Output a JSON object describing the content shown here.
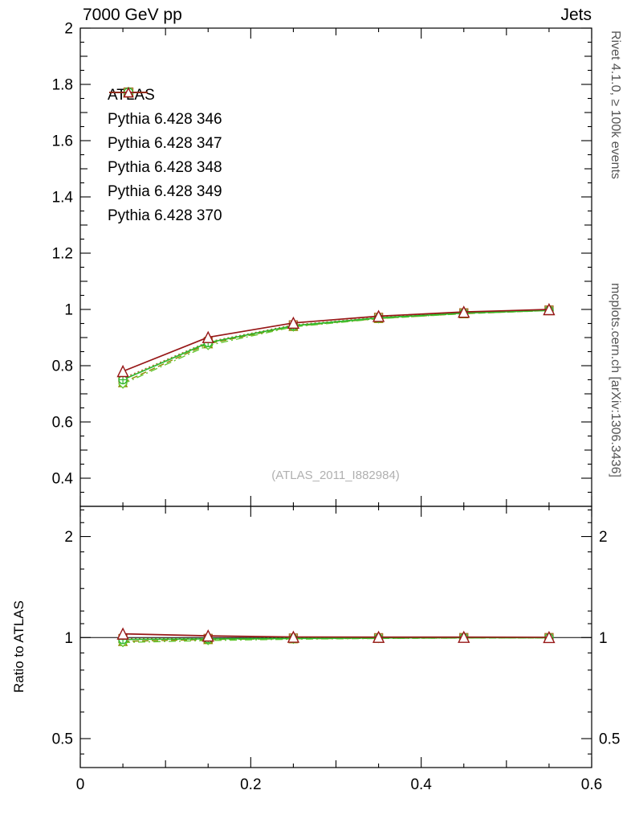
{
  "header": {
    "title_left": "7000 GeV pp",
    "title_right": "Jets"
  },
  "side_labels": {
    "right_top": "Rivet 4.1.0, ≥ 100k events",
    "right_bottom": "mcplots.cern.ch [arXiv:1306.3436]"
  },
  "watermark": "(ATLAS_2011_I882984)",
  "colors": {
    "frame": "#000000",
    "watermark": "#b0b0b0",
    "side_label": "#555555",
    "reference_line": "#000000"
  },
  "chart_data": [
    {
      "type": "line",
      "panel": "main",
      "x": [
        0.05,
        0.15,
        0.25,
        0.35,
        0.45,
        0.55
      ],
      "xlim": [
        0,
        0.6
      ],
      "ylim": [
        0.3,
        2.0
      ],
      "xticks": [
        0,
        0.2,
        0.4,
        0.6
      ],
      "yticks": [
        0.4,
        0.6,
        0.8,
        1,
        1.2,
        1.4,
        1.6,
        1.8,
        2
      ],
      "grid": false,
      "legend_position": "upper-left",
      "series": [
        {
          "name": "ATLAS",
          "color": "#000000",
          "marker": "square-filled",
          "linestyle": "none",
          "values": [
            0.76,
            0.89,
            0.948,
            0.973,
            0.988,
            0.998
          ]
        },
        {
          "name": "Pythia 6.428 346",
          "color": "#aa6e28",
          "marker": "square-open",
          "linestyle": "dotted",
          "values": [
            0.755,
            0.885,
            0.945,
            0.972,
            0.988,
            0.998
          ]
        },
        {
          "name": "Pythia 6.428 347",
          "color": "#8a8a00",
          "marker": "triangle-open",
          "linestyle": "dashed",
          "values": [
            0.74,
            0.878,
            0.94,
            0.968,
            0.985,
            0.996
          ]
        },
        {
          "name": "Pythia 6.428 348",
          "color": "#64c832",
          "marker": "diamond-open",
          "linestyle": "dashdot",
          "values": [
            0.735,
            0.872,
            0.938,
            0.967,
            0.985,
            0.996
          ]
        },
        {
          "name": "Pythia 6.428 349",
          "color": "#2eb82e",
          "marker": "circle-plus",
          "linestyle": "solid",
          "values": [
            0.75,
            0.882,
            0.942,
            0.97,
            0.987,
            0.997
          ]
        },
        {
          "name": "Pythia 6.428 370",
          "color": "#971717",
          "marker": "triangle-open",
          "linestyle": "solid",
          "values": [
            0.78,
            0.901,
            0.952,
            0.976,
            0.991,
            1.0
          ]
        }
      ]
    },
    {
      "type": "line",
      "panel": "ratio",
      "ylabel": "Ratio to ATLAS",
      "yscale": "log",
      "x": [
        0.05,
        0.15,
        0.25,
        0.35,
        0.45,
        0.55
      ],
      "xlim": [
        0,
        0.6
      ],
      "ylim": [
        0.41,
        2.46
      ],
      "xticks": [
        0,
        0.2,
        0.4,
        0.6
      ],
      "yticks": [
        0.5,
        1,
        2
      ],
      "reference_line": 1,
      "series": [
        {
          "name": "ATLAS",
          "color": "#000000",
          "marker": "square-filled",
          "linestyle": "none",
          "values": [
            1,
            1,
            1,
            1,
            1,
            1
          ]
        },
        {
          "name": "Pythia 6.428 346",
          "color": "#aa6e28",
          "marker": "square-open",
          "linestyle": "dotted",
          "values": [
            0.993,
            0.994,
            0.997,
            0.999,
            1.0,
            1.0
          ]
        },
        {
          "name": "Pythia 6.428 347",
          "color": "#8a8a00",
          "marker": "triangle-open",
          "linestyle": "dashed",
          "values": [
            0.974,
            0.987,
            0.992,
            0.995,
            0.997,
            0.998
          ]
        },
        {
          "name": "Pythia 6.428 348",
          "color": "#64c832",
          "marker": "diamond-open",
          "linestyle": "dashdot",
          "values": [
            0.967,
            0.98,
            0.989,
            0.994,
            0.997,
            0.998
          ]
        },
        {
          "name": "Pythia 6.428 349",
          "color": "#2eb82e",
          "marker": "circle-plus",
          "linestyle": "solid",
          "values": [
            0.987,
            0.991,
            0.994,
            0.997,
            0.999,
            0.999
          ]
        },
        {
          "name": "Pythia 6.428 370",
          "color": "#971717",
          "marker": "triangle-open",
          "linestyle": "solid",
          "values": [
            1.026,
            1.012,
            1.004,
            1.003,
            1.003,
            1.002
          ]
        }
      ]
    }
  ]
}
